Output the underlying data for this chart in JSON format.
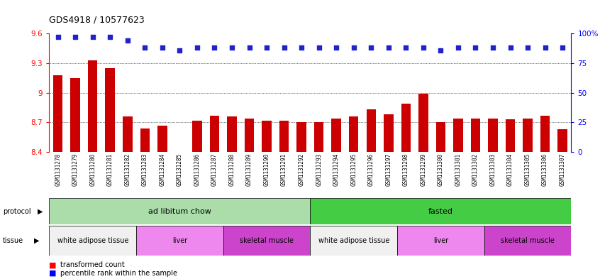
{
  "title": "GDS4918 / 10577623",
  "samples": [
    "GSM1131278",
    "GSM1131279",
    "GSM1131280",
    "GSM1131281",
    "GSM1131282",
    "GSM1131283",
    "GSM1131284",
    "GSM1131285",
    "GSM1131286",
    "GSM1131287",
    "GSM1131288",
    "GSM1131289",
    "GSM1131290",
    "GSM1131291",
    "GSM1131292",
    "GSM1131293",
    "GSM1131294",
    "GSM1131295",
    "GSM1131296",
    "GSM1131297",
    "GSM1131298",
    "GSM1131299",
    "GSM1131300",
    "GSM1131301",
    "GSM1131302",
    "GSM1131303",
    "GSM1131304",
    "GSM1131305",
    "GSM1131306",
    "GSM1131307"
  ],
  "bar_values": [
    9.18,
    9.15,
    9.33,
    9.25,
    8.76,
    8.64,
    8.67,
    8.4,
    8.72,
    8.77,
    8.76,
    8.74,
    8.72,
    8.72,
    8.7,
    8.7,
    8.74,
    8.76,
    8.83,
    8.78,
    8.89,
    8.99,
    8.7,
    8.74,
    8.74,
    8.74,
    8.73,
    8.74,
    8.77,
    8.63
  ],
  "dot_values": [
    97,
    97,
    97,
    97,
    94,
    88,
    88,
    86,
    88,
    88,
    88,
    88,
    88,
    88,
    88,
    88,
    88,
    88,
    88,
    88,
    88,
    88,
    86,
    88,
    88,
    88,
    88,
    88,
    88,
    88
  ],
  "ylim_left": [
    8.4,
    9.6
  ],
  "ylim_right": [
    0,
    100
  ],
  "yticks_left": [
    8.4,
    8.7,
    9.0,
    9.3,
    9.6
  ],
  "ytick_labels_left": [
    "8.4",
    "8.7",
    "9",
    "9.3",
    "9.6"
  ],
  "yticks_right": [
    0,
    25,
    50,
    75,
    100
  ],
  "ytick_labels_right": [
    "0",
    "25",
    "50",
    "75",
    "100%"
  ],
  "bar_color": "#cc0000",
  "dot_color": "#2222cc",
  "chart_bg": "#ffffff",
  "tick_area_bg": "#d8d8d8",
  "protocol_groups": [
    {
      "label": "ad libitum chow",
      "start": 0,
      "end": 15,
      "color": "#aaddaa"
    },
    {
      "label": "fasted",
      "start": 15,
      "end": 30,
      "color": "#44cc44"
    }
  ],
  "tissue_groups": [
    {
      "label": "white adipose tissue",
      "start": 0,
      "end": 5,
      "color": "#f0f0f0"
    },
    {
      "label": "liver",
      "start": 5,
      "end": 10,
      "color": "#ee88ee"
    },
    {
      "label": "skeletal muscle",
      "start": 10,
      "end": 15,
      "color": "#cc44cc"
    },
    {
      "label": "white adipose tissue",
      "start": 15,
      "end": 20,
      "color": "#f0f0f0"
    },
    {
      "label": "liver",
      "start": 20,
      "end": 25,
      "color": "#ee88ee"
    },
    {
      "label": "skeletal muscle",
      "start": 25,
      "end": 30,
      "color": "#cc44cc"
    }
  ]
}
